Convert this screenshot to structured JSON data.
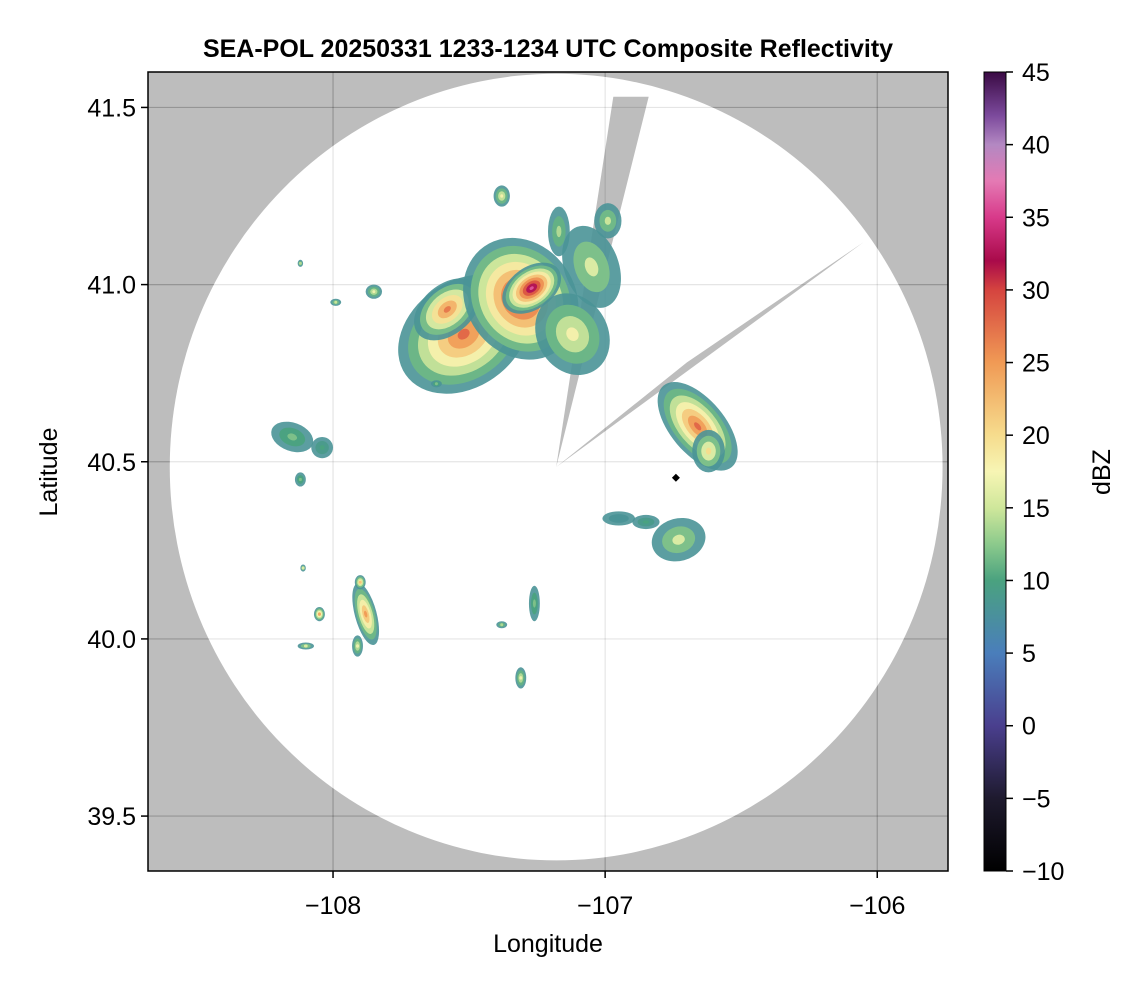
{
  "chart_data": {
    "type": "heatmap",
    "title": "SEA-POL 20250331 1233-1234 UTC Composite Reflectivity",
    "xlabel": "Longitude",
    "ylabel": "Latitude",
    "xlim": [
      -108.68,
      -105.74
    ],
    "ylim": [
      39.345,
      41.6
    ],
    "x_ticks": [
      -108,
      -107,
      -106
    ],
    "x_tick_labels": [
      "−108",
      "−107",
      "−106"
    ],
    "y_ticks": [
      39.5,
      40.0,
      40.5,
      41.0,
      41.5
    ],
    "y_tick_labels": [
      "39.5",
      "40.0",
      "40.5",
      "41.0",
      "41.5"
    ],
    "grid": true,
    "radar": {
      "center_lon": -107.18,
      "center_lat": 40.485,
      "max_range_lon": 1.42,
      "max_range_lat": 1.11,
      "blocked_sector_1": [
        [
          -107.18,
          40.485
        ],
        [
          -106.84,
          41.53
        ],
        [
          -106.97,
          41.53
        ]
      ],
      "blocked_sector_2": [
        [
          -107.18,
          40.485
        ],
        [
          -106.05,
          41.12
        ],
        [
          -106.7,
          40.78
        ]
      ]
    },
    "marker": {
      "lon": -106.74,
      "lat": 40.455
    },
    "echoes": [
      {
        "lon": -107.52,
        "lat": 40.86,
        "rx": 0.26,
        "ry": 0.15,
        "rot": 35,
        "peak": 28
      },
      {
        "lon": -107.58,
        "lat": 40.93,
        "rx": 0.14,
        "ry": 0.07,
        "rot": 40,
        "peak": 27
      },
      {
        "lon": -107.31,
        "lat": 40.96,
        "rx": 0.2,
        "ry": 0.18,
        "rot": 35,
        "peak": 33
      },
      {
        "lon": -107.27,
        "lat": 40.99,
        "rx": 0.12,
        "ry": 0.06,
        "rot": 35,
        "peak": 36
      },
      {
        "lon": -107.12,
        "lat": 40.86,
        "rx": 0.13,
        "ry": 0.12,
        "rot": 30,
        "peak": 18
      },
      {
        "lon": -107.05,
        "lat": 41.05,
        "rx": 0.1,
        "ry": 0.12,
        "rot": 20,
        "peak": 16
      },
      {
        "lon": -106.99,
        "lat": 41.18,
        "rx": 0.05,
        "ry": 0.05,
        "rot": 0,
        "peak": 15
      },
      {
        "lon": -107.38,
        "lat": 41.25,
        "rx": 0.03,
        "ry": 0.03,
        "rot": 0,
        "peak": 18
      },
      {
        "lon": -107.17,
        "lat": 41.15,
        "rx": 0.04,
        "ry": 0.07,
        "rot": 0,
        "peak": 14
      },
      {
        "lon": -106.66,
        "lat": 40.6,
        "rx": 0.1,
        "ry": 0.15,
        "rot": 40,
        "peak": 28
      },
      {
        "lon": -106.62,
        "lat": 40.53,
        "rx": 0.06,
        "ry": 0.06,
        "rot": 0,
        "peak": 20
      },
      {
        "lon": -106.73,
        "lat": 40.28,
        "rx": 0.1,
        "ry": 0.06,
        "rot": 15,
        "peak": 16
      },
      {
        "lon": -106.95,
        "lat": 40.34,
        "rx": 0.06,
        "ry": 0.02,
        "rot": 0,
        "peak": 8
      },
      {
        "lon": -106.85,
        "lat": 40.33,
        "rx": 0.05,
        "ry": 0.02,
        "rot": 0,
        "peak": 10
      },
      {
        "lon": -108.15,
        "lat": 40.57,
        "rx": 0.08,
        "ry": 0.04,
        "rot": -20,
        "peak": 12
      },
      {
        "lon": -108.04,
        "lat": 40.54,
        "rx": 0.04,
        "ry": 0.03,
        "rot": 0,
        "peak": 10
      },
      {
        "lon": -108.12,
        "lat": 40.45,
        "rx": 0.02,
        "ry": 0.02,
        "rot": 0,
        "peak": 12
      },
      {
        "lon": -107.88,
        "lat": 40.07,
        "rx": 0.04,
        "ry": 0.09,
        "rot": 15,
        "peak": 25
      },
      {
        "lon": -107.9,
        "lat": 40.16,
        "rx": 0.02,
        "ry": 0.02,
        "rot": 0,
        "peak": 22
      },
      {
        "lon": -107.91,
        "lat": 39.98,
        "rx": 0.02,
        "ry": 0.03,
        "rot": 0,
        "peak": 17
      },
      {
        "lon": -108.05,
        "lat": 40.07,
        "rx": 0.02,
        "ry": 0.02,
        "rot": 0,
        "peak": 24
      },
      {
        "lon": -108.1,
        "lat": 39.98,
        "rx": 0.03,
        "ry": 0.01,
        "rot": 0,
        "peak": 16
      },
      {
        "lon": -108.11,
        "lat": 40.2,
        "rx": 0.01,
        "ry": 0.01,
        "rot": 0,
        "peak": 16
      },
      {
        "lon": -107.26,
        "lat": 40.1,
        "rx": 0.02,
        "ry": 0.05,
        "rot": 0,
        "peak": 12
      },
      {
        "lon": -107.38,
        "lat": 40.04,
        "rx": 0.02,
        "ry": 0.01,
        "rot": 0,
        "peak": 14
      },
      {
        "lon": -107.31,
        "lat": 39.89,
        "rx": 0.02,
        "ry": 0.03,
        "rot": 0,
        "peak": 17
      },
      {
        "lon": -107.85,
        "lat": 40.98,
        "rx": 0.03,
        "ry": 0.02,
        "rot": 0,
        "peak": 17
      },
      {
        "lon": -107.99,
        "lat": 40.95,
        "rx": 0.02,
        "ry": 0.01,
        "rot": 0,
        "peak": 15
      },
      {
        "lon": -108.12,
        "lat": 41.06,
        "rx": 0.01,
        "ry": 0.01,
        "rot": 0,
        "peak": 14
      },
      {
        "lon": -107.62,
        "lat": 40.72,
        "rx": 0.02,
        "ry": 0.01,
        "rot": 0,
        "peak": 12
      }
    ],
    "colorbar": {
      "label": "dBZ",
      "range": [
        -10,
        45
      ],
      "ticks": [
        -10,
        -5,
        0,
        5,
        10,
        15,
        20,
        25,
        30,
        35,
        40,
        45
      ],
      "tick_labels": [
        "−10",
        "−5",
        "0",
        "5",
        "10",
        "15",
        "20",
        "25",
        "30",
        "35",
        "40",
        "45"
      ],
      "colorscale": [
        [
          -10,
          "#000000"
        ],
        [
          -5,
          "#1e1a2e"
        ],
        [
          0,
          "#4a3f8e"
        ],
        [
          5,
          "#4a7ebb"
        ],
        [
          10,
          "#4aa27f"
        ],
        [
          12.5,
          "#8cca8c"
        ],
        [
          15,
          "#cfe79b"
        ],
        [
          17.5,
          "#f7f5b4"
        ],
        [
          20,
          "#f6dc8d"
        ],
        [
          25,
          "#f09a55"
        ],
        [
          30,
          "#d5443f"
        ],
        [
          32,
          "#a90a4a"
        ],
        [
          35,
          "#d83a8a"
        ],
        [
          37.5,
          "#e47ab4"
        ],
        [
          40,
          "#b388c2"
        ],
        [
          42,
          "#7c4a9c"
        ],
        [
          45,
          "#3a0a44"
        ]
      ]
    },
    "colors": {
      "axes_background": "#bdbdbd",
      "radar_coverage": "#ffffff"
    }
  }
}
